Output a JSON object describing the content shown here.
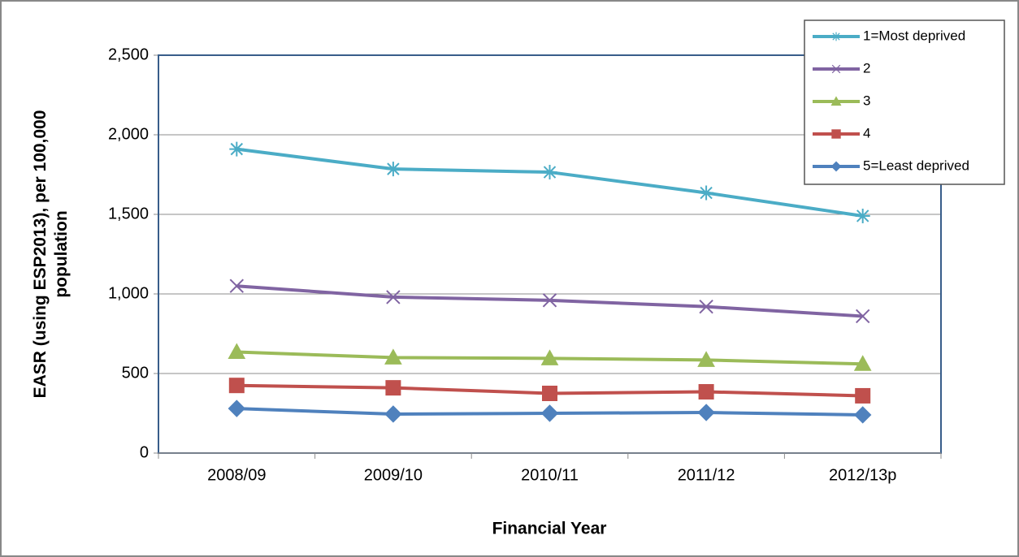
{
  "chart_data": {
    "type": "line",
    "x_label": "Financial Year",
    "y_label": [
      "EASR (using ESP2013), per 100,000",
      "population"
    ],
    "categories": [
      "2008/09",
      "2009/10",
      "2010/11",
      "2011/12",
      "2012/13p"
    ],
    "series": [
      {
        "name": "1=Most deprived",
        "color": "#4bacc6",
        "marker": "star",
        "values": [
          1910,
          1785,
          1765,
          1635,
          1490
        ]
      },
      {
        "name": "2",
        "color": "#8064a2",
        "marker": "x",
        "values": [
          1050,
          980,
          960,
          920,
          860
        ]
      },
      {
        "name": "3",
        "color": "#9bbb59",
        "marker": "triangle",
        "values": [
          635,
          600,
          595,
          585,
          560
        ]
      },
      {
        "name": "4",
        "color": "#c0504d",
        "marker": "square",
        "values": [
          425,
          410,
          375,
          385,
          360
        ]
      },
      {
        "name": "5=Least deprived",
        "color": "#4f81bd",
        "marker": "diamond",
        "values": [
          280,
          245,
          250,
          255,
          240
        ]
      }
    ],
    "ylim": [
      0,
      2500
    ],
    "yticks": [
      0,
      500,
      {
        "value": 1000,
        "label": "1,000"
      },
      {
        "value": 1500,
        "label": "1,500"
      },
      {
        "value": 2000,
        "label": "2,000"
      },
      {
        "value": 2500,
        "label": "2,500"
      }
    ],
    "grid": true,
    "legend": "top-right"
  }
}
